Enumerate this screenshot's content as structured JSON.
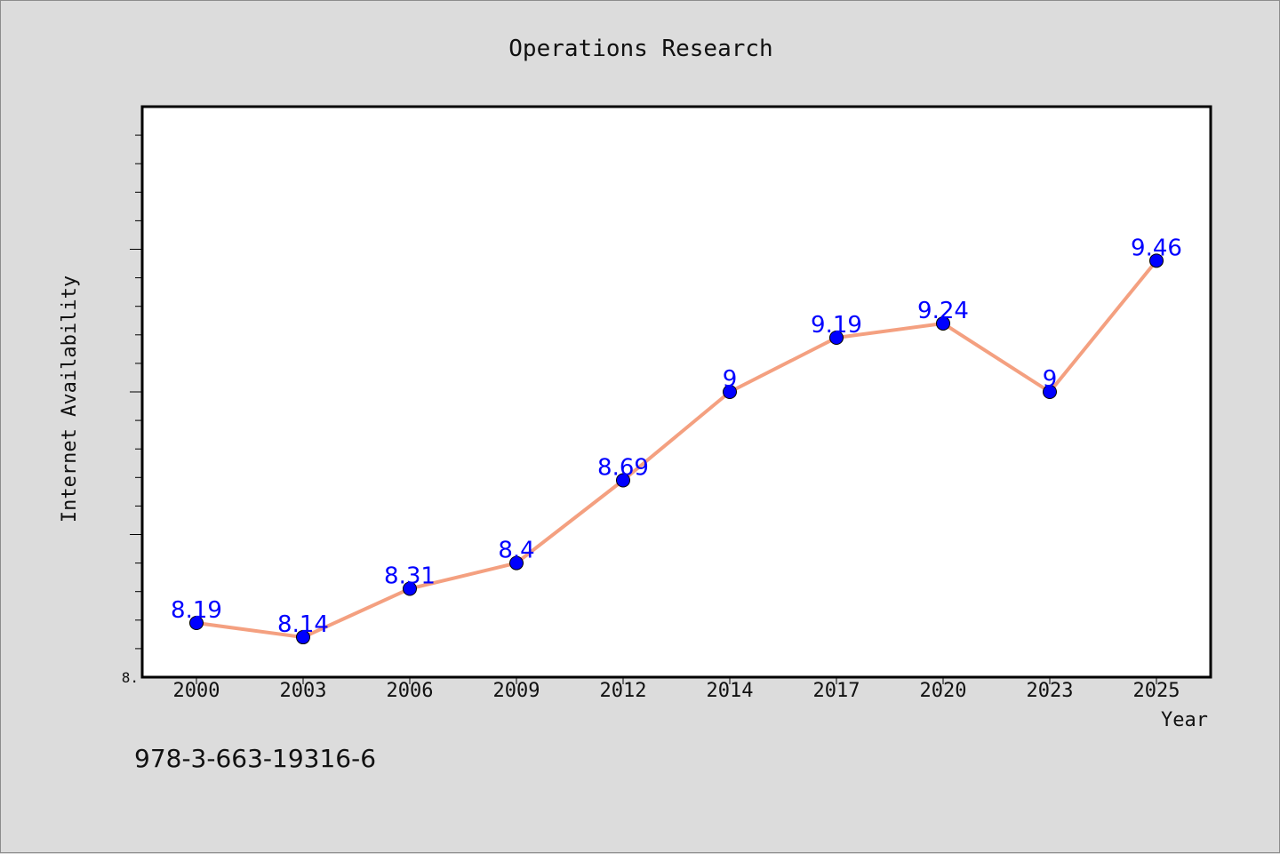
{
  "chart_data": {
    "type": "line",
    "title": "Operations Research",
    "xlabel": "Year",
    "ylabel": "Internet Availability",
    "categories": [
      "2000",
      "2003",
      "2006",
      "2009",
      "2012",
      "2014",
      "2017",
      "2020",
      "2023",
      "2025"
    ],
    "series": [
      {
        "values": [
          8.19,
          8.14,
          8.31,
          8.4,
          8.69,
          9,
          9.19,
          9.24,
          9,
          9.46
        ],
        "labels": [
          "8.19",
          "8.14",
          "8.31",
          "8.4",
          "8.69",
          "9",
          "9.19",
          "9.24",
          "9",
          "9.46"
        ]
      }
    ],
    "ylim": [
      8.0,
      10.0
    ],
    "y_tick_labels": [
      {
        "value": 8.0,
        "label": "8."
      }
    ],
    "grid": false,
    "colors": {
      "line": "#f4a080",
      "marker": "#0000ff",
      "data_label": "#0000ff",
      "plot_bg": "#ffffff",
      "page_bg": "#dcdcdc"
    }
  },
  "footer": {
    "isbn": "978-3-663-19316-6"
  }
}
